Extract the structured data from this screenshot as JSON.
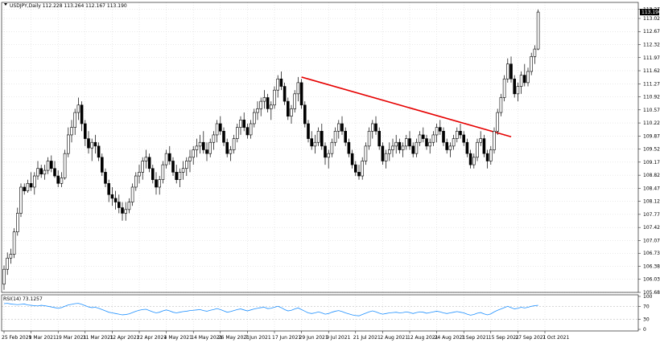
{
  "header": {
    "symbol_line": "USDJPY,Daily  112.228 113.264 112.167 113.190"
  },
  "rsi_panel": {
    "label": "RSI(14) 73.1257"
  },
  "colors": {
    "background": "#ffffff",
    "grid": "#d4d4d4",
    "candle": "#000000",
    "trendline": "#e60000",
    "rsi_line": "#1e90ff",
    "price_label_bg": "#000000",
    "price_label_fg": "#ffffff"
  },
  "chart_data": [
    {
      "type": "candlestick",
      "title": "",
      "price_ticks": [
        "113.270",
        "113.020",
        "112.670",
        "112.320",
        "111.970",
        "111.620",
        "111.270",
        "110.920",
        "110.570",
        "110.220",
        "109.870",
        "109.520",
        "109.170",
        "108.820",
        "108.470",
        "108.120",
        "107.770",
        "107.420",
        "107.070",
        "106.730",
        "106.380",
        "106.030",
        "105.680"
      ],
      "current_price_label": "113.190",
      "ylim": [
        105.68,
        113.45
      ],
      "date_ticks": [
        "25 Feb 2021",
        "9 Mar 2021",
        "19 Mar 2021",
        "31 Mar 2021",
        "12 Apr 2021",
        "22 Apr 2021",
        "4 May 2021",
        "14 May 2021",
        "26 May 2021",
        "7 Jun 2021",
        "17 Jun 2021",
        "29 Jun 2021",
        "9 Jul 2021",
        "21 Jul 2021",
        "2 Aug 2021",
        "12 Aug 2021",
        "24 Aug 2021",
        "3 Sep 2021",
        "15 Sep 2021",
        "27 Sep 2021",
        "7 Oct 2021"
      ],
      "date_tick_index": [
        0,
        8,
        16,
        24,
        32,
        40,
        48,
        56,
        64,
        72,
        80,
        88,
        96,
        104,
        112,
        120,
        128,
        136,
        144,
        152,
        160
      ],
      "grid": true,
      "ohlc": [
        [
          105.9,
          106.4,
          105.75,
          106.3
        ],
        [
          106.3,
          106.75,
          106.15,
          106.6
        ],
        [
          106.6,
          106.85,
          106.45,
          106.7
        ],
        [
          106.7,
          107.4,
          106.6,
          107.3
        ],
        [
          107.3,
          107.95,
          107.2,
          107.8
        ],
        [
          107.8,
          108.6,
          107.7,
          108.5
        ],
        [
          108.5,
          108.6,
          108.3,
          108.4
        ],
        [
          108.4,
          108.7,
          108.35,
          108.6
        ],
        [
          108.6,
          108.9,
          108.4,
          108.5
        ],
        [
          108.5,
          108.9,
          108.3,
          108.8
        ],
        [
          108.8,
          109.2,
          108.7,
          109.0
        ],
        [
          109.0,
          109.1,
          108.75,
          108.85
        ],
        [
          108.85,
          109.1,
          108.7,
          108.95
        ],
        [
          108.95,
          109.3,
          108.85,
          109.2
        ],
        [
          109.2,
          109.35,
          108.9,
          109.0
        ],
        [
          109.0,
          109.2,
          108.75,
          108.8
        ],
        [
          108.8,
          108.95,
          108.5,
          108.6
        ],
        [
          108.6,
          108.9,
          108.5,
          108.75
        ],
        [
          108.75,
          109.5,
          108.7,
          109.4
        ],
        [
          109.4,
          110.1,
          109.3,
          109.9
        ],
        [
          109.9,
          110.3,
          109.7,
          110.1
        ],
        [
          110.1,
          110.6,
          109.9,
          110.5
        ],
        [
          110.5,
          110.9,
          110.3,
          110.7
        ],
        [
          110.7,
          110.8,
          110.0,
          110.2
        ],
        [
          110.2,
          110.3,
          109.6,
          109.8
        ],
        [
          109.8,
          110.0,
          109.4,
          109.55
        ],
        [
          109.55,
          109.8,
          109.2,
          109.7
        ],
        [
          109.7,
          109.9,
          109.4,
          109.6
        ],
        [
          109.6,
          109.7,
          109.2,
          109.3
        ],
        [
          109.3,
          109.4,
          108.8,
          108.9
        ],
        [
          108.9,
          109.0,
          108.5,
          108.6
        ],
        [
          108.6,
          108.7,
          108.1,
          108.3
        ],
        [
          108.3,
          108.5,
          108.0,
          108.2
        ],
        [
          108.2,
          108.4,
          107.9,
          108.1
        ],
        [
          108.1,
          108.3,
          107.8,
          107.95
        ],
        [
          107.95,
          108.1,
          107.6,
          107.8
        ],
        [
          107.8,
          108.1,
          107.6,
          107.9
        ],
        [
          107.9,
          108.2,
          107.8,
          108.1
        ],
        [
          108.1,
          108.6,
          108.0,
          108.5
        ],
        [
          108.5,
          108.9,
          108.4,
          108.8
        ],
        [
          108.8,
          109.1,
          108.6,
          108.9
        ],
        [
          108.9,
          109.3,
          108.7,
          109.2
        ],
        [
          109.2,
          109.5,
          109.0,
          109.3
        ],
        [
          109.3,
          109.4,
          108.9,
          109.0
        ],
        [
          109.0,
          109.1,
          108.6,
          108.7
        ],
        [
          108.7,
          108.9,
          108.3,
          108.5
        ],
        [
          108.5,
          108.8,
          108.3,
          108.7
        ],
        [
          108.7,
          109.2,
          108.6,
          109.1
        ],
        [
          109.1,
          109.5,
          109.0,
          109.4
        ],
        [
          109.4,
          109.6,
          109.1,
          109.2
        ],
        [
          109.2,
          109.3,
          108.8,
          108.9
        ],
        [
          108.9,
          109.1,
          108.6,
          108.7
        ],
        [
          108.7,
          109.0,
          108.5,
          108.9
        ],
        [
          108.9,
          109.2,
          108.7,
          109.0
        ],
        [
          109.0,
          109.3,
          108.8,
          109.2
        ],
        [
          109.2,
          109.5,
          108.9,
          109.3
        ],
        [
          109.3,
          109.6,
          109.1,
          109.5
        ],
        [
          109.5,
          109.8,
          109.3,
          109.6
        ],
        [
          109.6,
          109.9,
          109.4,
          109.7
        ],
        [
          109.7,
          110.0,
          109.4,
          109.5
        ],
        [
          109.5,
          109.7,
          109.2,
          109.4
        ],
        [
          109.4,
          109.8,
          109.3,
          109.7
        ],
        [
          109.7,
          110.0,
          109.5,
          109.9
        ],
        [
          109.9,
          110.3,
          109.7,
          110.2
        ],
        [
          110.2,
          110.4,
          109.9,
          110.0
        ],
        [
          110.0,
          110.1,
          109.6,
          109.7
        ],
        [
          109.7,
          109.8,
          109.3,
          109.4
        ],
        [
          109.4,
          109.6,
          109.2,
          109.5
        ],
        [
          109.5,
          109.9,
          109.4,
          109.8
        ],
        [
          109.8,
          110.2,
          109.7,
          110.1
        ],
        [
          110.1,
          110.4,
          109.9,
          110.3
        ],
        [
          110.3,
          110.5,
          110.0,
          110.1
        ],
        [
          110.1,
          110.2,
          109.8,
          109.9
        ],
        [
          109.9,
          110.3,
          109.8,
          110.2
        ],
        [
          110.2,
          110.6,
          110.1,
          110.5
        ],
        [
          110.5,
          110.8,
          110.3,
          110.6
        ],
        [
          110.6,
          110.9,
          110.4,
          110.8
        ],
        [
          110.8,
          111.1,
          110.6,
          110.9
        ],
        [
          110.9,
          111.0,
          110.5,
          110.6
        ],
        [
          110.6,
          110.8,
          110.3,
          110.7
        ],
        [
          110.7,
          111.2,
          110.6,
          111.1
        ],
        [
          111.1,
          111.5,
          110.9,
          111.4
        ],
        [
          111.4,
          111.6,
          111.1,
          111.2
        ],
        [
          111.2,
          111.3,
          110.7,
          110.8
        ],
        [
          110.8,
          110.9,
          110.3,
          110.4
        ],
        [
          110.4,
          110.7,
          110.2,
          110.6
        ],
        [
          110.6,
          111.1,
          110.5,
          111.0
        ],
        [
          111.0,
          111.45,
          110.8,
          111.3
        ],
        [
          111.3,
          111.4,
          110.6,
          110.7
        ],
        [
          110.7,
          110.8,
          110.1,
          110.2
        ],
        [
          110.2,
          110.3,
          109.7,
          109.8
        ],
        [
          109.8,
          110.0,
          109.5,
          109.6
        ],
        [
          109.6,
          109.9,
          109.4,
          109.7
        ],
        [
          109.7,
          110.1,
          109.6,
          110.0
        ],
        [
          110.0,
          110.2,
          109.5,
          109.6
        ],
        [
          109.6,
          109.7,
          109.1,
          109.3
        ],
        [
          109.3,
          109.5,
          109.0,
          109.4
        ],
        [
          109.4,
          109.8,
          109.3,
          109.7
        ],
        [
          109.7,
          110.1,
          109.6,
          110.0
        ],
        [
          110.0,
          110.3,
          109.8,
          110.2
        ],
        [
          110.2,
          110.4,
          109.9,
          110.0
        ],
        [
          110.0,
          110.1,
          109.6,
          109.7
        ],
        [
          109.7,
          109.8,
          109.3,
          109.4
        ],
        [
          109.4,
          109.5,
          109.0,
          109.1
        ],
        [
          109.1,
          109.2,
          108.8,
          108.9
        ],
        [
          108.9,
          109.1,
          108.7,
          108.8
        ],
        [
          108.8,
          109.3,
          108.7,
          109.2
        ],
        [
          109.2,
          109.7,
          109.1,
          109.6
        ],
        [
          109.6,
          110.1,
          109.5,
          110.0
        ],
        [
          110.0,
          110.3,
          109.8,
          110.2
        ],
        [
          110.2,
          110.4,
          109.9,
          110.0
        ],
        [
          110.0,
          110.1,
          109.5,
          109.6
        ],
        [
          109.6,
          109.7,
          109.1,
          109.2
        ],
        [
          109.2,
          109.5,
          109.0,
          109.4
        ],
        [
          109.4,
          109.7,
          109.2,
          109.5
        ],
        [
          109.5,
          109.8,
          109.3,
          109.6
        ],
        [
          109.6,
          109.9,
          109.4,
          109.7
        ],
        [
          109.7,
          109.8,
          109.4,
          109.5
        ],
        [
          109.5,
          109.7,
          109.3,
          109.6
        ],
        [
          109.6,
          109.9,
          109.5,
          109.8
        ],
        [
          109.8,
          110.0,
          109.5,
          109.6
        ],
        [
          109.6,
          109.7,
          109.3,
          109.4
        ],
        [
          109.4,
          109.8,
          109.3,
          109.7
        ],
        [
          109.7,
          110.0,
          109.6,
          109.9
        ],
        [
          109.9,
          110.1,
          109.7,
          109.8
        ],
        [
          109.8,
          109.9,
          109.5,
          109.6
        ],
        [
          109.6,
          109.8,
          109.4,
          109.7
        ],
        [
          109.7,
          110.0,
          109.6,
          109.9
        ],
        [
          109.9,
          110.2,
          109.7,
          110.1
        ],
        [
          110.1,
          110.3,
          109.9,
          110.0
        ],
        [
          110.0,
          110.1,
          109.6,
          109.7
        ],
        [
          109.7,
          109.8,
          109.4,
          109.5
        ],
        [
          109.5,
          109.7,
          109.3,
          109.6
        ],
        [
          109.6,
          109.9,
          109.5,
          109.8
        ],
        [
          109.8,
          110.1,
          109.7,
          110.0
        ],
        [
          110.0,
          110.2,
          109.8,
          109.9
        ],
        [
          109.9,
          110.0,
          109.6,
          109.7
        ],
        [
          109.7,
          109.8,
          109.3,
          109.4
        ],
        [
          109.4,
          109.5,
          109.0,
          109.1
        ],
        [
          109.1,
          109.4,
          109.0,
          109.3
        ],
        [
          109.3,
          109.8,
          109.2,
          109.7
        ],
        [
          109.7,
          110.0,
          109.6,
          109.8
        ],
        [
          109.8,
          109.9,
          109.3,
          109.4
        ],
        [
          109.4,
          109.5,
          109.0,
          109.2
        ],
        [
          109.2,
          109.6,
          109.1,
          109.5
        ],
        [
          109.5,
          110.1,
          109.4,
          110.0
        ],
        [
          110.0,
          110.6,
          109.9,
          110.5
        ],
        [
          110.5,
          111.0,
          110.4,
          110.9
        ],
        [
          110.9,
          111.5,
          110.8,
          111.4
        ],
        [
          111.4,
          111.95,
          111.3,
          111.8
        ],
        [
          111.8,
          112.0,
          111.3,
          111.4
        ],
        [
          111.4,
          111.5,
          110.9,
          111.0
        ],
        [
          111.0,
          111.3,
          110.8,
          111.2
        ],
        [
          111.2,
          111.6,
          111.0,
          111.5
        ],
        [
          111.5,
          111.8,
          111.2,
          111.3
        ],
        [
          111.3,
          111.7,
          111.2,
          111.6
        ],
        [
          111.6,
          112.1,
          111.5,
          112.0
        ],
        [
          112.0,
          112.3,
          111.8,
          112.2
        ],
        [
          112.2,
          113.26,
          112.17,
          113.19
        ]
      ],
      "trendline": {
        "start": {
          "index": 88,
          "price": 111.45
        },
        "end": {
          "index": 150,
          "price": 109.85
        }
      }
    },
    {
      "type": "line",
      "title": "",
      "series_label": "RSI(14) 73.1257",
      "ticks": [
        "100",
        "70",
        "30",
        "0"
      ],
      "ylim": [
        0,
        100
      ],
      "values": [
        78,
        79,
        77,
        76,
        75,
        76,
        77,
        74,
        73,
        72,
        71,
        73,
        72,
        70,
        68,
        66,
        64,
        66,
        70,
        74,
        76,
        78,
        79,
        76,
        72,
        68,
        66,
        67,
        64,
        60,
        56,
        52,
        50,
        48,
        46,
        44,
        45,
        47,
        51,
        55,
        58,
        60,
        61,
        57,
        53,
        50,
        52,
        56,
        59,
        56,
        52,
        50,
        52,
        54,
        55,
        57,
        58,
        59,
        60,
        57,
        55,
        58,
        60,
        63,
        60,
        56,
        52,
        54,
        57,
        60,
        62,
        59,
        56,
        59,
        62,
        64,
        66,
        67,
        63,
        64,
        67,
        70,
        66,
        60,
        56,
        58,
        62,
        65,
        60,
        55,
        50,
        48,
        50,
        53,
        50,
        46,
        48,
        52,
        55,
        57,
        54,
        50,
        47,
        44,
        42,
        41,
        45,
        49,
        53,
        56,
        53,
        49,
        46,
        48,
        50,
        51,
        52,
        50,
        51,
        53,
        51,
        48,
        51,
        53,
        52,
        49,
        51,
        53,
        55,
        53,
        50,
        48,
        50,
        52,
        54,
        52,
        50,
        46,
        43,
        45,
        49,
        51,
        47,
        44,
        47,
        53,
        58,
        62,
        66,
        70,
        66,
        62,
        64,
        67,
        65,
        67,
        70,
        72,
        73
      ]
    }
  ]
}
